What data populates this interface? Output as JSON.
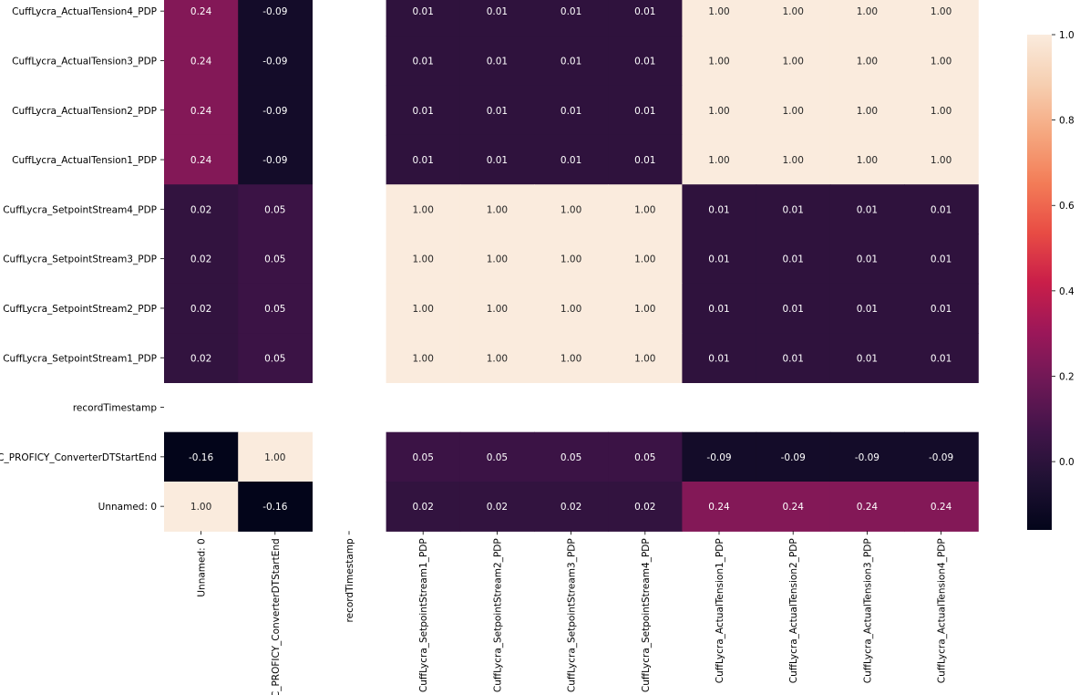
{
  "chart_data": {
    "type": "heatmap",
    "title": "",
    "x_labels": [
      "Unnamed: 0",
      "C_PROFICY_ConverterDTStartEnd",
      "recordTimestamp",
      "CuffLycra_SetpointStream1_PDP",
      "CuffLycra_SetpointStream2_PDP",
      "CuffLycra_SetpointStream3_PDP",
      "CuffLycra_SetpointStream4_PDP",
      "CuffLycra_ActualTension1_PDP",
      "CuffLycra_ActualTension2_PDP",
      "CuffLycra_ActualTension3_PDP",
      "CuffLycra_ActualTension4_PDP"
    ],
    "y_labels_top_to_bottom": [
      "CuffLycra_ActualTension4_PDP",
      "CuffLycra_ActualTension3_PDP",
      "CuffLycra_ActualTension2_PDP",
      "CuffLycra_ActualTension1_PDP",
      "CuffLycra_SetpointStream4_PDP",
      "CuffLycra_SetpointStream3_PDP",
      "CuffLycra_SetpointStream2_PDP",
      "CuffLycra_SetpointStream1_PDP",
      "recordTimestamp",
      "C_PROFICY_ConverterDTStartEnd",
      "Unnamed: 0"
    ],
    "values_top_to_bottom": [
      [
        0.24,
        -0.09,
        null,
        0.01,
        0.01,
        0.01,
        0.01,
        1.0,
        1.0,
        1.0,
        1.0
      ],
      [
        0.24,
        -0.09,
        null,
        0.01,
        0.01,
        0.01,
        0.01,
        1.0,
        1.0,
        1.0,
        1.0
      ],
      [
        0.24,
        -0.09,
        null,
        0.01,
        0.01,
        0.01,
        0.01,
        1.0,
        1.0,
        1.0,
        1.0
      ],
      [
        0.24,
        -0.09,
        null,
        0.01,
        0.01,
        0.01,
        0.01,
        1.0,
        1.0,
        1.0,
        1.0
      ],
      [
        0.02,
        0.05,
        null,
        1.0,
        1.0,
        1.0,
        1.0,
        0.01,
        0.01,
        0.01,
        0.01
      ],
      [
        0.02,
        0.05,
        null,
        1.0,
        1.0,
        1.0,
        1.0,
        0.01,
        0.01,
        0.01,
        0.01
      ],
      [
        0.02,
        0.05,
        null,
        1.0,
        1.0,
        1.0,
        1.0,
        0.01,
        0.01,
        0.01,
        0.01
      ],
      [
        0.02,
        0.05,
        null,
        1.0,
        1.0,
        1.0,
        1.0,
        0.01,
        0.01,
        0.01,
        0.01
      ],
      [
        null,
        null,
        null,
        null,
        null,
        null,
        null,
        null,
        null,
        null,
        null
      ],
      [
        -0.16,
        1.0,
        null,
        0.05,
        0.05,
        0.05,
        0.05,
        -0.09,
        -0.09,
        -0.09,
        -0.09
      ],
      [
        1.0,
        -0.16,
        null,
        0.02,
        0.02,
        0.02,
        0.02,
        0.24,
        0.24,
        0.24,
        0.24
      ]
    ],
    "vmin": -0.16,
    "vmax": 1.0,
    "colormap": "rocket",
    "colorbar_ticks": [
      0.0,
      0.2,
      0.4,
      0.6,
      0.8,
      1.0
    ],
    "colorbar_tick_labels": [
      "0.0",
      "0.2",
      "0.4",
      "0.6",
      "0.8",
      "1.0"
    ],
    "annotation_format": "0.00",
    "grid": false
  }
}
